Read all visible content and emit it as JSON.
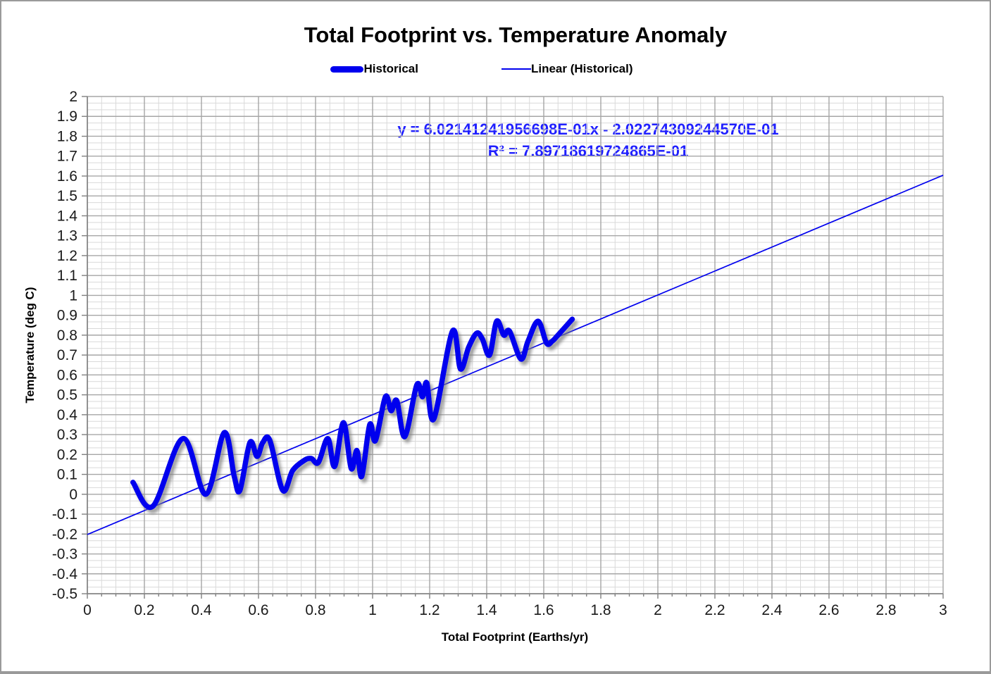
{
  "chart_data": {
    "type": "line",
    "title": "Total Footprint vs. Temperature Anomaly",
    "xlabel": "Total Footprint (Earths/yr)",
    "ylabel": "Temperature (deg C)",
    "xlim": [
      0,
      3
    ],
    "ylim": [
      -0.5,
      2
    ],
    "x_major_unit": 0.2,
    "x_minor_unit": 0.05,
    "y_major_unit": 0.1,
    "y_minor_unit": 0.033333,
    "grid": {
      "major_color": "#a6a6a6",
      "minor_color": "#d9d9d9",
      "axis_color": "#808080"
    },
    "x_ticks": [
      "0",
      "0.2",
      "0.4",
      "0.6",
      "0.8",
      "1",
      "1.2",
      "1.4",
      "1.6",
      "1.8",
      "2",
      "2.2",
      "2.4",
      "2.6",
      "2.8",
      "3"
    ],
    "y_ticks": [
      "2",
      "1.9",
      "1.8",
      "1.7",
      "1.6",
      "1.5",
      "1.4",
      "1.3",
      "1.2",
      "1.1",
      "1",
      "0.9",
      "0.8",
      "0.7",
      "0.6",
      "0.5",
      "0.4",
      "0.3",
      "0.2",
      "0.1",
      "0",
      "-0.1",
      "-0.2",
      "-0.3",
      "-0.4",
      "-0.5"
    ],
    "legend": [
      {
        "label": "Historical",
        "swatch": "thick"
      },
      {
        "label": "Linear (Historical)",
        "swatch": "thin"
      }
    ],
    "annotation": {
      "line1": "y = 6.02141241956698E-01x - 2.02274309244570E-01",
      "line2": "R² = 7.89718619724865E-01",
      "color": "#1f1fff"
    },
    "series": [
      {
        "name": "Historical",
        "style": "thick",
        "color": "#0000ee",
        "points": [
          [
            0.16,
            0.06
          ],
          [
            0.23,
            -0.06
          ],
          [
            0.335,
            0.28
          ],
          [
            0.415,
            0.0
          ],
          [
            0.48,
            0.31
          ],
          [
            0.515,
            0.09
          ],
          [
            0.535,
            0.02
          ],
          [
            0.57,
            0.26
          ],
          [
            0.595,
            0.19
          ],
          [
            0.615,
            0.26
          ],
          [
            0.64,
            0.27
          ],
          [
            0.685,
            0.02
          ],
          [
            0.72,
            0.12
          ],
          [
            0.76,
            0.17
          ],
          [
            0.785,
            0.18
          ],
          [
            0.81,
            0.16
          ],
          [
            0.843,
            0.28
          ],
          [
            0.867,
            0.14
          ],
          [
            0.898,
            0.36
          ],
          [
            0.925,
            0.13
          ],
          [
            0.945,
            0.22
          ],
          [
            0.962,
            0.09
          ],
          [
            0.99,
            0.35
          ],
          [
            1.01,
            0.27
          ],
          [
            1.045,
            0.49
          ],
          [
            1.065,
            0.42
          ],
          [
            1.085,
            0.47
          ],
          [
            1.113,
            0.29
          ],
          [
            1.155,
            0.55
          ],
          [
            1.175,
            0.49
          ],
          [
            1.19,
            0.56
          ],
          [
            1.215,
            0.38
          ],
          [
            1.28,
            0.82
          ],
          [
            1.308,
            0.63
          ],
          [
            1.337,
            0.74
          ],
          [
            1.365,
            0.81
          ],
          [
            1.385,
            0.78
          ],
          [
            1.41,
            0.7
          ],
          [
            1.435,
            0.87
          ],
          [
            1.46,
            0.8
          ],
          [
            1.48,
            0.82
          ],
          [
            1.52,
            0.68
          ],
          [
            1.545,
            0.77
          ],
          [
            1.58,
            0.87
          ],
          [
            1.61,
            0.76
          ],
          [
            1.63,
            0.77
          ],
          [
            1.65,
            0.8
          ],
          [
            1.7,
            0.88
          ]
        ]
      },
      {
        "name": "Linear (Historical)",
        "style": "thin",
        "color": "#0000ee",
        "slope": 0.602141241956698,
        "intercept": -0.20227430924457,
        "x_range": [
          0,
          3
        ]
      }
    ]
  }
}
